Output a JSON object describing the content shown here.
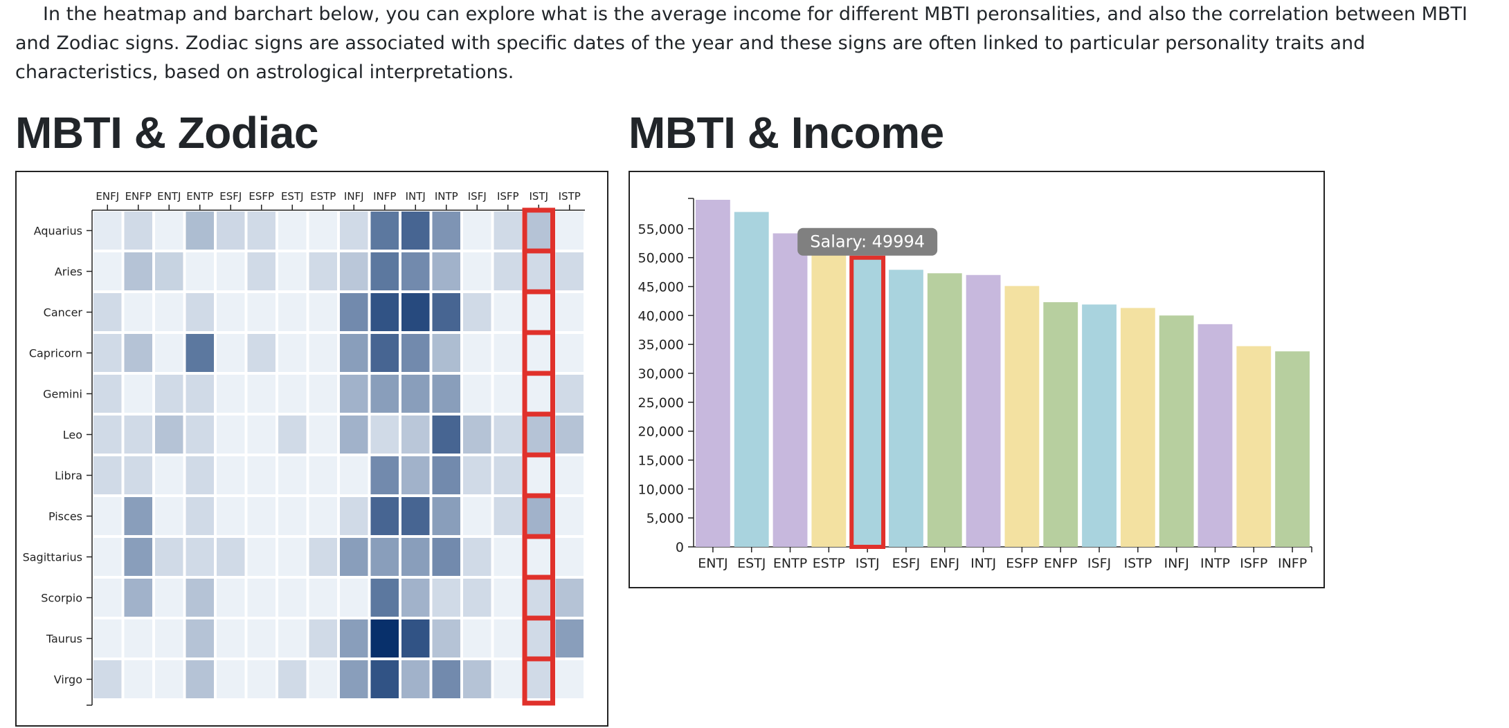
{
  "intro": "In the heatmap and barchart below, you can explore what is the average income for different MBTI peronsalities, and also the correlation between MBTI and Zodiac signs. Zodiac signs are associated with specific dates of the year and these signs are often linked to particular personality traits and characteristics, based on astrological interpretations.",
  "heatmap_title": "MBTI & Zodiac",
  "bar_title": "MBTI & Income",
  "colors": {
    "highlight": "#e0312b",
    "tooltip_bg": "#808080",
    "tooltip_text": "#ffffff",
    "heat_low": "#f7fbff",
    "heat_high": "#08306b",
    "bar_purple": "#c7b8dd",
    "bar_blue": "#a9d3de",
    "bar_yellow": "#f3e1a1",
    "bar_green": "#b7cf9f"
  },
  "chart_data": [
    {
      "type": "heatmap",
      "title": "MBTI & Zodiac",
      "x_categories": [
        "ENFJ",
        "ENFP",
        "ENTJ",
        "ENTP",
        "ESFJ",
        "ESFP",
        "ESTJ",
        "ESTP",
        "INFJ",
        "INFP",
        "INTJ",
        "INTP",
        "ISFJ",
        "ISFP",
        "ISTJ",
        "ISTP"
      ],
      "y_categories": [
        "Aquarius",
        "Aries",
        "Cancer",
        "Capricorn",
        "Gemini",
        "Leo",
        "Libra",
        "Pisces",
        "Sagittarius",
        "Scorpio",
        "Taurus",
        "Virgo"
      ],
      "values": [
        [
          0.5,
          1.2,
          0.3,
          2.5,
          1.3,
          1.2,
          0.3,
          0.3,
          1.2,
          6.0,
          7.0,
          4.5,
          0.3,
          1.2,
          2.2,
          0.3
        ],
        [
          0.3,
          2.2,
          1.5,
          0.3,
          0.3,
          1.2,
          0.3,
          1.2,
          2.0,
          6.0,
          5.0,
          3.0,
          0.3,
          1.2,
          1.2,
          1.2
        ],
        [
          1.2,
          0.3,
          0.3,
          1.2,
          0.3,
          0.3,
          0.3,
          0.3,
          5.0,
          8.0,
          8.5,
          7.0,
          1.2,
          0.3,
          0.3,
          0.3
        ],
        [
          1.2,
          2.2,
          0.3,
          6.0,
          0.3,
          1.2,
          0.3,
          0.3,
          4.0,
          7.0,
          5.0,
          2.5,
          0.3,
          0.3,
          0.3,
          0.3
        ],
        [
          1.2,
          0.3,
          1.2,
          1.2,
          0.3,
          0.3,
          0.3,
          0.3,
          3.0,
          4.0,
          4.0,
          4.0,
          0.3,
          0.3,
          0.3,
          1.2
        ],
        [
          1.2,
          1.2,
          2.2,
          1.2,
          0.3,
          0.3,
          1.2,
          0.3,
          3.0,
          1.2,
          2.0,
          7.0,
          2.2,
          1.2,
          2.2,
          2.2
        ],
        [
          1.2,
          1.2,
          0.3,
          1.2,
          0.3,
          0.3,
          0.3,
          0.3,
          0.3,
          5.0,
          3.0,
          5.0,
          1.2,
          1.2,
          0.3,
          0.3
        ],
        [
          0.3,
          4.0,
          0.3,
          1.2,
          0.3,
          0.3,
          0.3,
          0.3,
          1.2,
          7.0,
          7.0,
          4.0,
          0.3,
          1.2,
          3.0,
          0.3
        ],
        [
          0.3,
          4.0,
          1.2,
          1.2,
          1.2,
          0.3,
          0.3,
          1.2,
          4.0,
          4.0,
          4.0,
          5.0,
          1.2,
          0.3,
          0.3,
          0.3
        ],
        [
          0.3,
          3.0,
          0.3,
          2.2,
          0.3,
          0.3,
          0.3,
          0.3,
          0.3,
          6.0,
          3.0,
          1.2,
          1.2,
          0.3,
          1.2,
          2.2
        ],
        [
          0.3,
          0.3,
          0.3,
          2.2,
          0.3,
          0.3,
          0.3,
          1.2,
          4.0,
          10.0,
          8.0,
          2.2,
          0.3,
          0.3,
          1.2,
          4.0
        ],
        [
          1.2,
          0.3,
          0.3,
          2.2,
          0.3,
          0.3,
          1.2,
          0.3,
          4.0,
          8.0,
          3.0,
          5.0,
          2.2,
          0.3,
          1.2,
          0.3
        ]
      ],
      "highlighted_column": "ISTJ"
    },
    {
      "type": "bar",
      "title": "MBTI & Income",
      "categories": [
        "ENTJ",
        "ESTJ",
        "ENTP",
        "ESTP",
        "ISTJ",
        "ESFJ",
        "ENFJ",
        "INTJ",
        "ESFP",
        "ENFP",
        "ISFJ",
        "ISTP",
        "INFJ",
        "INTP",
        "ISFP",
        "INFP"
      ],
      "values": [
        60000,
        57900,
        54200,
        51300,
        49994,
        47900,
        47300,
        47000,
        45100,
        42300,
        41900,
        41300,
        40000,
        38500,
        34700,
        33800
      ],
      "bar_colors": [
        "purple",
        "blue",
        "purple",
        "yellow",
        "blue",
        "blue",
        "green",
        "purple",
        "yellow",
        "green",
        "blue",
        "yellow",
        "green",
        "purple",
        "yellow",
        "green"
      ],
      "ylim": [
        0,
        60000
      ],
      "yticks": [
        0,
        5000,
        10000,
        15000,
        20000,
        25000,
        30000,
        35000,
        40000,
        45000,
        50000,
        55000
      ],
      "highlighted_category": "ISTJ",
      "tooltip": "Salary: 49994"
    }
  ]
}
